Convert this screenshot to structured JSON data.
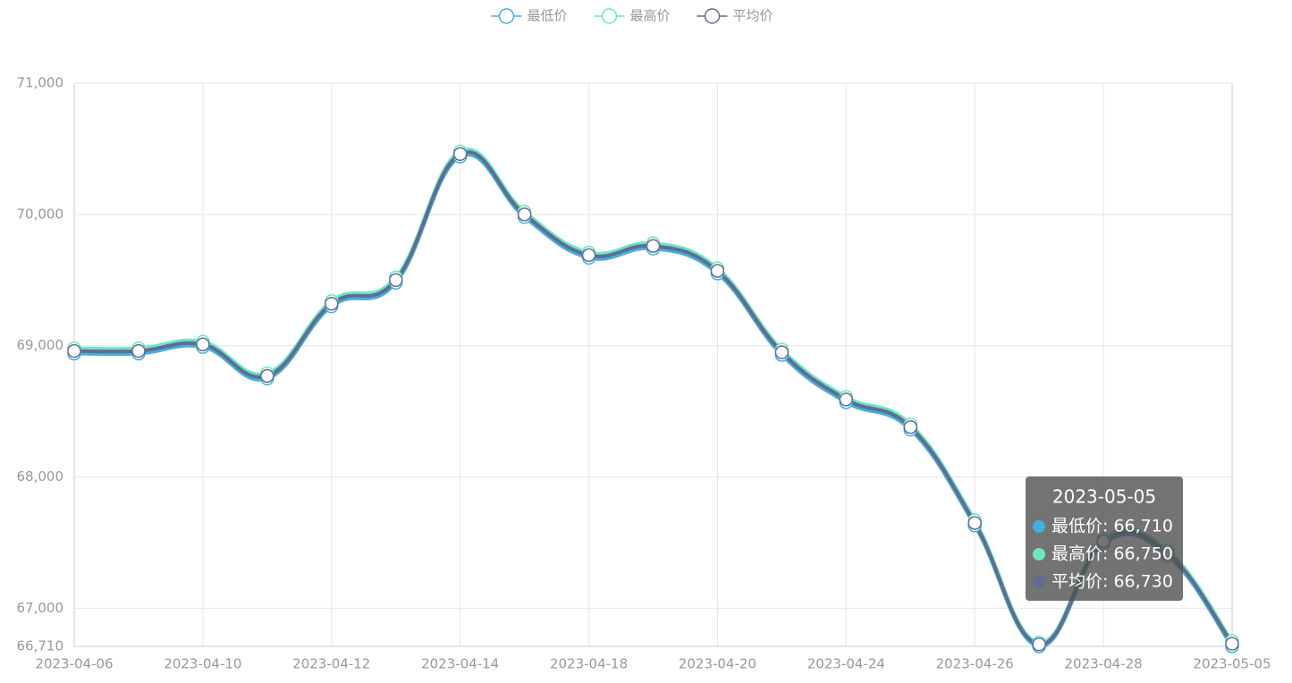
{
  "chart_data": {
    "type": "line",
    "categories": [
      "2023-04-06",
      null,
      "2023-04-10",
      null,
      "2023-04-12",
      null,
      "2023-04-14",
      null,
      "2023-04-18",
      null,
      "2023-04-20",
      null,
      "2023-04-24",
      null,
      "2023-04-26",
      null,
      "2023-04-28",
      null,
      "2023-05-05"
    ],
    "series": [
      {
        "name": "最低价",
        "color": "#3fb1e3",
        "values": [
          68940,
          68940,
          68990,
          68750,
          69300,
          69480,
          70440,
          69980,
          69670,
          69740,
          69550,
          68930,
          68570,
          68360,
          67630,
          66710,
          67490,
          67400,
          66710
        ]
      },
      {
        "name": "最高价",
        "color": "#6be6c1",
        "values": [
          68980,
          68980,
          69030,
          68790,
          69340,
          69520,
          70480,
          70020,
          69710,
          69780,
          69590,
          68970,
          68610,
          68400,
          67670,
          66740,
          67530,
          67440,
          66750
        ]
      },
      {
        "name": "平均价",
        "color": "#626c91",
        "values": [
          68960,
          68960,
          69010,
          68770,
          69320,
          69500,
          70460,
          70000,
          69690,
          69760,
          69570,
          68950,
          68590,
          68380,
          67650,
          66725,
          67510,
          67420,
          66730
        ]
      }
    ],
    "ylim": [
      66710,
      71000
    ],
    "yticks": [
      {
        "value": 66710,
        "label": "66,710"
      },
      {
        "value": 67000,
        "label": "67,000"
      },
      {
        "value": 68000,
        "label": "68,000"
      },
      {
        "value": 69000,
        "label": "69,000"
      },
      {
        "value": 70000,
        "label": "70,000"
      },
      {
        "value": 71000,
        "label": "71,000"
      }
    ],
    "grid": true,
    "legend": "top",
    "tooltip": {
      "title": "2023-05-05",
      "rows": [
        "最低价: 66,710",
        "最高价: 66,750",
        "平均价: 66,730"
      ]
    }
  }
}
